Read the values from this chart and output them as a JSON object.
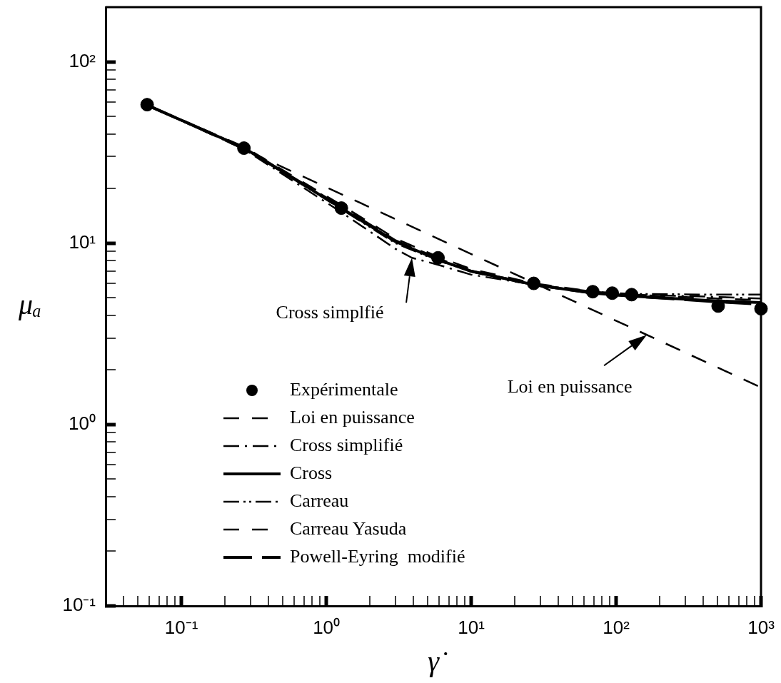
{
  "chart_data": {
    "type": "line",
    "xlabel": "γ̇",
    "ylabel": "μₐ",
    "log": "xy",
    "legend": "bottom left",
    "xlim": [
      0.03,
      1000
    ],
    "ylim": [
      0.1,
      200
    ],
    "xticks": [
      {
        "value": 0.04,
        "label": null
      },
      {
        "value": 0.05,
        "label": null
      },
      {
        "value": 0.06,
        "label": null
      },
      {
        "value": 0.07,
        "label": null
      },
      {
        "value": 0.08,
        "label": null
      },
      {
        "value": 0.09,
        "label": null
      },
      {
        "value": 0.1,
        "label": "10⁻¹"
      },
      {
        "value": 0.2,
        "label": null
      },
      {
        "value": 0.3,
        "label": null
      },
      {
        "value": 0.4,
        "label": null
      },
      {
        "value": 0.5,
        "label": null
      },
      {
        "value": 0.6,
        "label": null
      },
      {
        "value": 0.7,
        "label": null
      },
      {
        "value": 0.8,
        "label": null
      },
      {
        "value": 0.9,
        "label": null
      },
      {
        "value": 1,
        "label": "10⁰"
      },
      {
        "value": 2,
        "label": null
      },
      {
        "value": 3,
        "label": null
      },
      {
        "value": 4,
        "label": null
      },
      {
        "value": 5,
        "label": null
      },
      {
        "value": 6,
        "label": null
      },
      {
        "value": 7,
        "label": null
      },
      {
        "value": 8,
        "label": null
      },
      {
        "value": 9,
        "label": null
      },
      {
        "value": 10,
        "label": "10¹"
      },
      {
        "value": 20,
        "label": null
      },
      {
        "value": 30,
        "label": null
      },
      {
        "value": 40,
        "label": null
      },
      {
        "value": 50,
        "label": null
      },
      {
        "value": 60,
        "label": null
      },
      {
        "value": 70,
        "label": null
      },
      {
        "value": 80,
        "label": null
      },
      {
        "value": 90,
        "label": null
      },
      {
        "value": 100,
        "label": "10²"
      },
      {
        "value": 200,
        "label": null
      },
      {
        "value": 300,
        "label": null
      },
      {
        "value": 400,
        "label": null
      },
      {
        "value": 500,
        "label": null
      },
      {
        "value": 600,
        "label": null
      },
      {
        "value": 700,
        "label": null
      },
      {
        "value": 800,
        "label": null
      },
      {
        "value": 900,
        "label": null
      },
      {
        "value": 1000,
        "label": "10³"
      }
    ],
    "yticks": [
      {
        "value": 0.1,
        "label": "10⁻¹"
      },
      {
        "value": 0.2,
        "label": null
      },
      {
        "value": 0.3,
        "label": null
      },
      {
        "value": 0.4,
        "label": null
      },
      {
        "value": 0.5,
        "label": null
      },
      {
        "value": 0.6,
        "label": null
      },
      {
        "value": 0.7,
        "label": null
      },
      {
        "value": 0.8,
        "label": null
      },
      {
        "value": 0.9,
        "label": null
      },
      {
        "value": 1,
        "label": "10⁰"
      },
      {
        "value": 2,
        "label": null
      },
      {
        "value": 3,
        "label": null
      },
      {
        "value": 4,
        "label": null
      },
      {
        "value": 5,
        "label": null
      },
      {
        "value": 6,
        "label": null
      },
      {
        "value": 7,
        "label": null
      },
      {
        "value": 8,
        "label": null
      },
      {
        "value": 9,
        "label": null
      },
      {
        "value": 10,
        "label": "10¹"
      },
      {
        "value": 20,
        "label": null
      },
      {
        "value": 30,
        "label": null
      },
      {
        "value": 40,
        "label": null
      },
      {
        "value": 50,
        "label": null
      },
      {
        "value": 60,
        "label": null
      },
      {
        "value": 70,
        "label": null
      },
      {
        "value": 80,
        "label": null
      },
      {
        "value": 90,
        "label": null
      },
      {
        "value": 100,
        "label": "10²"
      }
    ],
    "series": [
      {
        "name": "Expérimentale",
        "type": "scatter",
        "marker": "circle",
        "color": "#000000",
        "x": [
          0.058,
          0.27,
          1.27,
          5.9,
          27,
          69,
          94,
          128,
          506,
          1000
        ],
        "values": [
          58,
          33.4,
          15.6,
          8.3,
          6.0,
          5.4,
          5.3,
          5.2,
          4.5,
          4.35
        ]
      },
      {
        "name": "Loi en puissance",
        "line_style": "dashed",
        "color": "#000000",
        "x": [
          0.058,
          1000
        ],
        "values": [
          58,
          1.6
        ]
      },
      {
        "name": "Cross simplifié",
        "line_style": "dashdot",
        "color": "#000000",
        "x": [
          0.06,
          0.27,
          1.27,
          3,
          3.9,
          5.9,
          10,
          27,
          70,
          130,
          500,
          1000
        ],
        "values": [
          57,
          33,
          14.8,
          9.3,
          8.3,
          7.6,
          6.7,
          5.9,
          5.4,
          5.2,
          5.05,
          4.95
        ]
      },
      {
        "name": "Cross",
        "line_style": "solid",
        "color": "#000000",
        "x": [
          0.06,
          0.27,
          1.27,
          3,
          5.9,
          10,
          27,
          70,
          130,
          500,
          1000
        ],
        "values": [
          57,
          33.5,
          15.6,
          10.2,
          8.1,
          7.0,
          5.9,
          5.3,
          5.1,
          4.8,
          4.7
        ]
      },
      {
        "name": "Carreau",
        "line_style": "dashdotdot",
        "color": "#000000",
        "x": [
          0.06,
          0.27,
          1.27,
          3,
          5.9,
          10,
          27,
          70,
          130,
          500,
          1000
        ],
        "values": [
          57,
          33.5,
          15.4,
          10.0,
          8.0,
          7.0,
          5.9,
          5.35,
          5.25,
          5.2,
          5.2
        ]
      },
      {
        "name": "Carreau Yasuda",
        "line_style": "dashed",
        "color": "#000000",
        "x": [
          0.06,
          0.27,
          1.27,
          3,
          5.9,
          10,
          27,
          70,
          130,
          500,
          1000
        ],
        "values": [
          57,
          34,
          16.2,
          10.6,
          8.4,
          7.2,
          6.0,
          5.4,
          5.2,
          4.95,
          4.85
        ]
      },
      {
        "name": "Powell-Eyring  modifié",
        "line_style": "longdash",
        "color": "#000000",
        "x": [
          0.06,
          0.27,
          1.27,
          3,
          5.9,
          10,
          27,
          70,
          130,
          500,
          1000
        ],
        "values": [
          57,
          33.5,
          15.8,
          10.3,
          8.2,
          7.0,
          5.9,
          5.3,
          5.1,
          4.75,
          4.6
        ]
      }
    ],
    "annotations": [
      {
        "text": "Cross simplfié",
        "x": 3.9,
        "y": 8.3
      },
      {
        "text": "Loi en puissance",
        "x": 163,
        "y": 3.12
      }
    ]
  }
}
